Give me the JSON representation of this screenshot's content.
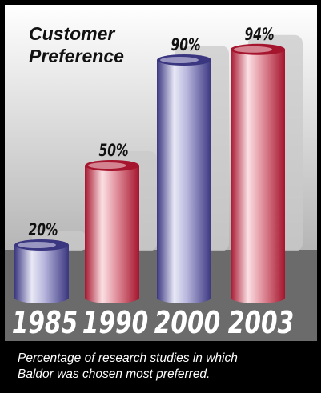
{
  "chart_data": {
    "type": "bar",
    "title_lines": [
      "Customer",
      "Preference"
    ],
    "categories": [
      "1985",
      "1990",
      "2000",
      "2003"
    ],
    "values": [
      20,
      50,
      90,
      94
    ],
    "value_labels": [
      "20%",
      "50%",
      "90%",
      "94%"
    ],
    "ylim": [
      0,
      100
    ],
    "grid": false,
    "legend": "none",
    "caption_lines": [
      "Percentage of research studies in which",
      "Baldor was chosen most preferred."
    ],
    "bar_colors": [
      "blue",
      "red",
      "blue",
      "red"
    ],
    "colors": {
      "blue_dark": "#3a3680",
      "blue_light": "#e8e8f6",
      "red_dark": "#a5152d",
      "red_light": "#fbe0e4",
      "floor": "#6b6b6b",
      "shadow": "#c9c9c9",
      "background_top": "#ffffff",
      "background_bottom": "#b5b5b5",
      "caption_band": "#000000"
    }
  }
}
